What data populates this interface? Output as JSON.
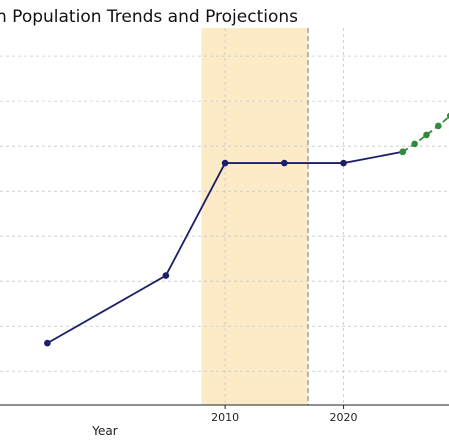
{
  "chart_data": {
    "type": "line",
    "title": "n Population Trends and Projections",
    "xlabel": "Year",
    "ylabel": "",
    "xlim": [
      1991,
      2028.9
    ],
    "ylim": [
      17,
      50.5
    ],
    "x_ticks": [
      2010,
      2020
    ],
    "y_grid": [
      20,
      24,
      28,
      32,
      36,
      40,
      44,
      48
    ],
    "shaded_region": {
      "x": [
        2008,
        2017
      ],
      "color": "#fdebc8"
    },
    "vertical_line": {
      "x": 2017,
      "style": "dashed",
      "color": "#a89f92"
    },
    "series": [
      {
        "style": "solid",
        "color": "#1b1f66",
        "marker": "circle",
        "x": [
          1995,
          2005,
          2010,
          2015,
          2020,
          2025
        ],
        "y": [
          22.5,
          28.5,
          38.5,
          38.5,
          38.5,
          39.5
        ]
      },
      {
        "style": "dashed",
        "color": "#2e8b3a",
        "marker": "circle",
        "x": [
          2025,
          2026,
          2027,
          2028,
          2029
        ],
        "y": [
          39.5,
          40.2,
          41.0,
          41.8,
          42.7
        ]
      }
    ]
  }
}
